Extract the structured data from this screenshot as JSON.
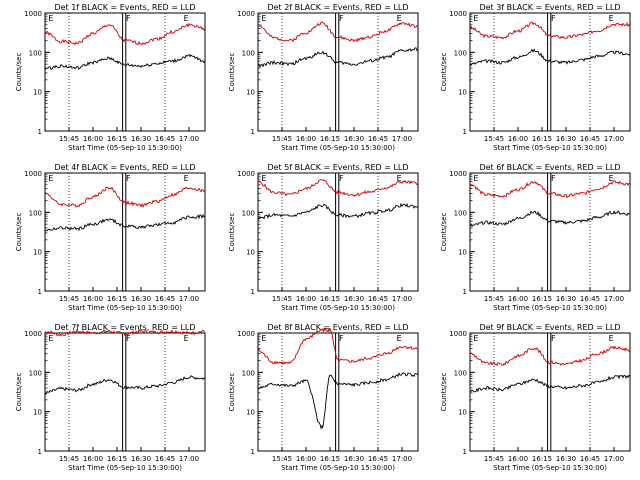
{
  "figure": {
    "ylabel": "Counts/sec",
    "xlabel": "Start Time (05-Sep-10 15:30:00)",
    "time_ticks": [
      "15:45",
      "16:00",
      "16:15",
      "16:30",
      "16:45",
      "17:00"
    ],
    "y_ticks": [
      "1",
      "10",
      "100",
      "1000"
    ],
    "marker_labels": [
      "E",
      "F",
      "E"
    ],
    "colors": {
      "events": "#000000",
      "lld": "#d00000"
    }
  },
  "chart_data": [
    {
      "type": "line",
      "title": "Det 1f BLACK = Events, RED = LLD",
      "ylim": [
        1,
        1000
      ],
      "yscale": "log",
      "x_range": [
        "15:30",
        "17:10"
      ],
      "series": [
        {
          "name": "RED = LLD",
          "color": "#d00000",
          "x": [
            0,
            10,
            20,
            30,
            40,
            50,
            60,
            70,
            80,
            90,
            100
          ],
          "values": [
            320,
            190,
            170,
            300,
            500,
            200,
            170,
            220,
            330,
            500,
            400
          ]
        },
        {
          "name": "BLACK = Events",
          "color": "#000000",
          "x": [
            0,
            10,
            20,
            30,
            40,
            50,
            60,
            70,
            80,
            90,
            100
          ],
          "values": [
            38,
            45,
            40,
            55,
            70,
            48,
            45,
            52,
            60,
            80,
            60
          ]
        }
      ]
    },
    {
      "type": "line",
      "title": "Det 2f BLACK = Events, RED = LLD",
      "ylim": [
        1,
        1000
      ],
      "yscale": "log",
      "x_range": [
        "15:30",
        "17:10"
      ],
      "series": [
        {
          "name": "RED = LLD",
          "color": "#d00000",
          "x": [
            0,
            10,
            20,
            30,
            40,
            50,
            60,
            70,
            80,
            90,
            100
          ],
          "values": [
            500,
            230,
            200,
            320,
            550,
            240,
            200,
            250,
            350,
            550,
            450
          ]
        },
        {
          "name": "BLACK = Events",
          "color": "#000000",
          "x": [
            0,
            10,
            20,
            30,
            40,
            50,
            60,
            70,
            80,
            90,
            100
          ],
          "values": [
            45,
            55,
            50,
            70,
            100,
            55,
            50,
            60,
            75,
            110,
            120
          ]
        }
      ]
    },
    {
      "type": "line",
      "title": "Det 3f BLACK = Events, RED = LLD",
      "ylim": [
        1,
        1000
      ],
      "yscale": "log",
      "x_range": [
        "15:30",
        "17:10"
      ],
      "series": [
        {
          "name": "RED = LLD",
          "color": "#d00000",
          "x": [
            0,
            10,
            20,
            30,
            40,
            50,
            60,
            70,
            80,
            90,
            100
          ],
          "values": [
            420,
            260,
            240,
            350,
            550,
            260,
            240,
            280,
            360,
            520,
            500
          ]
        },
        {
          "name": "BLACK = Events",
          "color": "#000000",
          "x": [
            0,
            10,
            20,
            30,
            40,
            50,
            60,
            70,
            80,
            90,
            100
          ],
          "values": [
            50,
            60,
            55,
            75,
            110,
            60,
            55,
            65,
            80,
            100,
            90
          ]
        }
      ]
    },
    {
      "type": "line",
      "title": "Det 4f BLACK = Events, RED = LLD",
      "ylim": [
        1,
        1000
      ],
      "yscale": "log",
      "x_range": [
        "15:30",
        "17:10"
      ],
      "series": [
        {
          "name": "RED = LLD",
          "color": "#d00000",
          "x": [
            0,
            10,
            20,
            30,
            40,
            50,
            60,
            70,
            80,
            90,
            100
          ],
          "values": [
            300,
            160,
            150,
            250,
            420,
            180,
            150,
            190,
            280,
            420,
            350
          ]
        },
        {
          "name": "BLACK = Events",
          "color": "#000000",
          "x": [
            0,
            10,
            20,
            30,
            40,
            50,
            60,
            70,
            80,
            90,
            100
          ],
          "values": [
            35,
            40,
            38,
            50,
            65,
            45,
            42,
            48,
            55,
            75,
            80
          ]
        }
      ]
    },
    {
      "type": "line",
      "title": "Det 5f BLACK = Events, RED = LLD",
      "ylim": [
        1,
        1000
      ],
      "yscale": "log",
      "x_range": [
        "15:30",
        "17:10"
      ],
      "series": [
        {
          "name": "RED = LLD",
          "color": "#d00000",
          "x": [
            0,
            10,
            20,
            30,
            40,
            50,
            60,
            70,
            80,
            90,
            100
          ],
          "values": [
            600,
            320,
            280,
            400,
            650,
            320,
            280,
            330,
            420,
            600,
            550
          ]
        },
        {
          "name": "BLACK = Events",
          "color": "#000000",
          "x": [
            0,
            10,
            20,
            30,
            40,
            50,
            60,
            70,
            80,
            90,
            100
          ],
          "values": [
            70,
            85,
            80,
            100,
            150,
            85,
            80,
            95,
            110,
            150,
            140
          ]
        }
      ]
    },
    {
      "type": "line",
      "title": "Det 6f BLACK = Events, RED = LLD",
      "ylim": [
        1,
        1000
      ],
      "yscale": "log",
      "x_range": [
        "15:30",
        "17:10"
      ],
      "series": [
        {
          "name": "RED = LLD",
          "color": "#d00000",
          "x": [
            0,
            10,
            20,
            30,
            40,
            50,
            60,
            70,
            80,
            90,
            100
          ],
          "values": [
            520,
            280,
            260,
            380,
            600,
            300,
            260,
            300,
            400,
            580,
            520
          ]
        },
        {
          "name": "BLACK = Events",
          "color": "#000000",
          "x": [
            0,
            10,
            20,
            30,
            40,
            50,
            60,
            70,
            80,
            90,
            100
          ],
          "values": [
            45,
            55,
            50,
            70,
            100,
            60,
            55,
            60,
            75,
            100,
            90
          ]
        }
      ]
    },
    {
      "type": "line",
      "title": "Det 7f BLACK = Events, RED = LLD",
      "ylim": [
        1,
        1000
      ],
      "yscale": "log",
      "x_range": [
        "15:30",
        "17:10"
      ],
      "series": [
        {
          "name": "RED = LLD",
          "color": "#d00000",
          "x": [
            0,
            10,
            20,
            30,
            40,
            50,
            60,
            70,
            80,
            90,
            100
          ],
          "values": [
            1100,
            900,
            1100,
            1000,
            1100,
            950,
            1100,
            1050,
            1100,
            1000,
            1100
          ]
        },
        {
          "name": "BLACK = Events",
          "color": "#000000",
          "x": [
            0,
            10,
            20,
            30,
            40,
            50,
            60,
            70,
            80,
            90,
            100
          ],
          "values": [
            30,
            38,
            35,
            50,
            65,
            42,
            40,
            45,
            55,
            75,
            70
          ]
        }
      ]
    },
    {
      "type": "line",
      "title": "Det 8f BLACK = Events, RED = LLD",
      "ylim": [
        1,
        1000
      ],
      "yscale": "log",
      "x_range": [
        "15:30",
        "17:10"
      ],
      "series": [
        {
          "name": "RED = LLD",
          "color": "#d00000",
          "x": [
            0,
            10,
            20,
            30,
            40,
            45,
            50,
            60,
            70,
            80,
            90,
            100
          ],
          "values": [
            350,
            180,
            170,
            700,
            1200,
            1200,
            200,
            190,
            230,
            300,
            450,
            400
          ]
        },
        {
          "name": "BLACK = Events",
          "color": "#000000",
          "x": [
            0,
            10,
            20,
            30,
            40,
            45,
            50,
            60,
            70,
            80,
            90,
            100
          ],
          "values": [
            40,
            50,
            45,
            60,
            4,
            80,
            50,
            48,
            55,
            65,
            90,
            85
          ]
        }
      ]
    },
    {
      "type": "line",
      "title": "Det 9f BLACK = Events, RED = LLD",
      "ylim": [
        1,
        1000
      ],
      "yscale": "log",
      "x_range": [
        "15:30",
        "17:10"
      ],
      "series": [
        {
          "name": "RED = LLD",
          "color": "#d00000",
          "x": [
            0,
            10,
            20,
            30,
            40,
            50,
            60,
            70,
            80,
            90,
            100
          ],
          "values": [
            300,
            170,
            160,
            260,
            420,
            180,
            160,
            200,
            300,
            420,
            380
          ]
        },
        {
          "name": "BLACK = Events",
          "color": "#000000",
          "x": [
            0,
            10,
            20,
            30,
            40,
            50,
            60,
            70,
            80,
            90,
            100
          ],
          "values": [
            32,
            40,
            36,
            50,
            65,
            44,
            40,
            46,
            55,
            75,
            80
          ]
        }
      ]
    }
  ]
}
